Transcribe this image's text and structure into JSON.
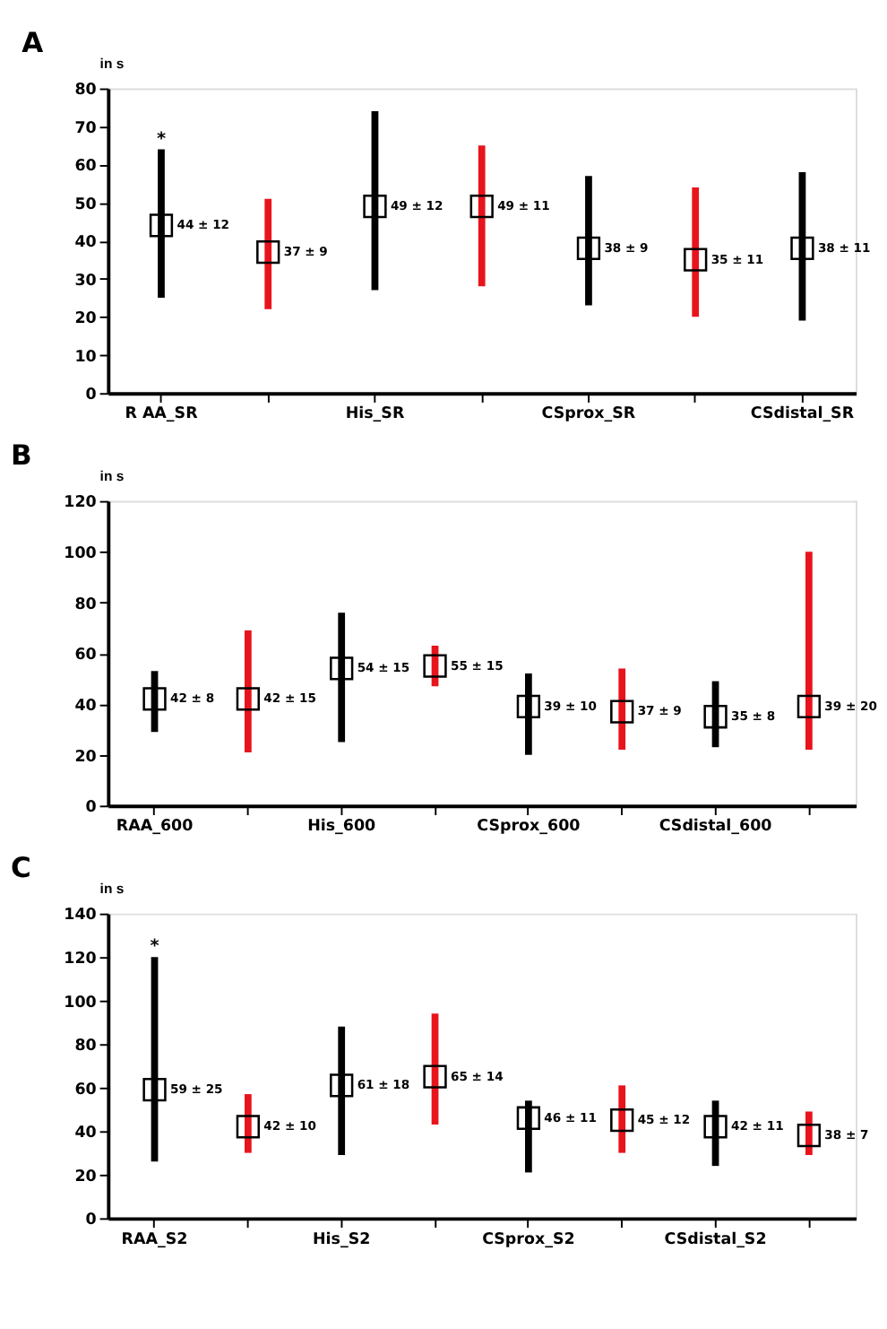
{
  "chart_data": [
    {
      "type": "bar",
      "title": "A",
      "ylabel": "in s",
      "categories": [
        "R AA_SR",
        null,
        "His_SR",
        null,
        "CSprox_SR",
        null,
        "CSdistal_SR"
      ],
      "ylim": [
        0,
        80
      ],
      "yticks": [
        0,
        10,
        20,
        30,
        40,
        50,
        60,
        70,
        80
      ],
      "grid": false,
      "series": [
        {
          "type": "bar",
          "base": [
            25,
            22,
            27,
            28,
            23,
            20,
            19
          ],
          "values": [
            39,
            29,
            47,
            37,
            34,
            34,
            39
          ],
          "colors": [
            "#000000",
            "#e8141c",
            "#000000",
            "#e8141c",
            "#000000",
            "#e8141c",
            "#000000"
          ]
        },
        {
          "type": "scatter",
          "marker": "square",
          "color": "#000000",
          "values": [
            44,
            37,
            49,
            49,
            38,
            35,
            38
          ],
          "value_labels": [
            "44 ± 12",
            "37 ± 9",
            "49 ± 12",
            "49 ± 11",
            "38 ± 9",
            "35 ± 11",
            "38 ± 11"
          ]
        }
      ],
      "annotations": [
        "*"
      ]
    },
    {
      "type": "bar",
      "title": "B",
      "ylabel": "in s",
      "categories": [
        "RAA_600",
        null,
        "His_600",
        null,
        "CSprox_600",
        null,
        "CSdistal_600",
        null
      ],
      "ylim": [
        0,
        120
      ],
      "yticks": [
        0,
        20,
        40,
        60,
        80,
        100,
        120
      ],
      "grid": false,
      "series": [
        {
          "type": "bar",
          "base": [
            29,
            21,
            25,
            47,
            20,
            22,
            23,
            22
          ],
          "values": [
            24,
            48,
            51,
            16,
            32,
            32,
            26,
            78
          ],
          "colors": [
            "#000000",
            "#e8141c",
            "#000000",
            "#e8141c",
            "#000000",
            "#e8141c",
            "#000000",
            "#e8141c"
          ]
        },
        {
          "type": "scatter",
          "marker": "square",
          "color": "#000000",
          "values": [
            42,
            42,
            54,
            55,
            39,
            37,
            35,
            39
          ],
          "value_labels": [
            "42 ± 8",
            "42 ± 15",
            "54 ± 15",
            "55 ± 15",
            "39 ± 10",
            "37 ± 9",
            "35 ± 8",
            "39 ± 20"
          ]
        }
      ]
    },
    {
      "type": "bar",
      "title": "C",
      "ylabel": "in s",
      "categories": [
        "RAA_S2",
        null,
        "His_S2",
        null,
        "CSprox_S2",
        null,
        "CSdistal_S2",
        null
      ],
      "ylim": [
        0,
        140
      ],
      "yticks": [
        0,
        20,
        40,
        60,
        80,
        100,
        120,
        140
      ],
      "grid": false,
      "series": [
        {
          "type": "bar",
          "base": [
            26,
            30,
            29,
            43,
            21,
            30,
            24,
            29
          ],
          "values": [
            94,
            27,
            59,
            51,
            33,
            31,
            30,
            20
          ],
          "colors": [
            "#000000",
            "#e8141c",
            "#000000",
            "#e8141c",
            "#000000",
            "#e8141c",
            "#000000",
            "#e8141c"
          ]
        },
        {
          "type": "scatter",
          "marker": "square",
          "color": "#000000",
          "values": [
            59,
            42,
            61,
            65,
            46,
            45,
            42,
            38
          ],
          "value_labels": [
            "59 ± 25",
            "42 ± 10",
            "61 ± 18",
            "65 ± 14",
            "46 ± 11",
            "45 ± 12",
            "42 ± 11",
            "38 ± 7"
          ]
        }
      ],
      "annotations": [
        "*"
      ]
    }
  ]
}
